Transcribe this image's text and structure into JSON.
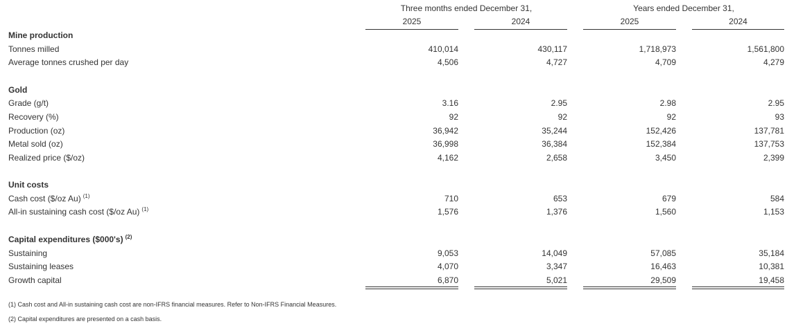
{
  "header": {
    "groups": [
      {
        "label": "Three months ended December 31,",
        "years": [
          "2025",
          "2024"
        ]
      },
      {
        "label": "Years ended December 31,",
        "years": [
          "2025",
          "2024"
        ]
      }
    ]
  },
  "sections": [
    {
      "title": "Mine production",
      "rows": [
        {
          "label": "Tonnes milled",
          "values": [
            "410,014",
            "430,117",
            "1,718,973",
            "1,561,800"
          ]
        },
        {
          "label": "Average tonnes crushed per day",
          "values": [
            "4,506",
            "4,727",
            "4,709",
            "4,279"
          ]
        }
      ]
    },
    {
      "title": "Gold",
      "rows": [
        {
          "label": "Grade (g/t)",
          "values": [
            "3.16",
            "2.95",
            "2.98",
            "2.95"
          ]
        },
        {
          "label": "Recovery (%)",
          "values": [
            "92",
            "92",
            "92",
            "93"
          ]
        },
        {
          "label": "Production (oz)",
          "values": [
            "36,942",
            "35,244",
            "152,426",
            "137,781"
          ]
        },
        {
          "label": "Metal sold (oz)",
          "values": [
            "36,998",
            "36,384",
            "152,384",
            "137,753"
          ]
        },
        {
          "label": "Realized price ($/oz)",
          "values": [
            "4,162",
            "2,658",
            "3,450",
            "2,399"
          ]
        }
      ]
    },
    {
      "title": "Unit costs",
      "rows": [
        {
          "label": "Cash cost ($/oz Au)",
          "note": "(1)",
          "values": [
            "710",
            "653",
            "679",
            "584"
          ]
        },
        {
          "label": "All-in sustaining cash cost ($/oz Au)",
          "note": "(1)",
          "values": [
            "1,576",
            "1,376",
            "1,560",
            "1,153"
          ]
        }
      ]
    },
    {
      "title": "Capital expenditures ($000's)",
      "note": "(2)",
      "rows": [
        {
          "label": "Sustaining",
          "values": [
            "9,053",
            "14,049",
            "57,085",
            "35,184"
          ]
        },
        {
          "label": "Sustaining leases",
          "values": [
            "4,070",
            "3,347",
            "16,463",
            "10,381"
          ]
        },
        {
          "label": "Growth capital",
          "values": [
            "6,870",
            "5,021",
            "29,509",
            "19,458"
          ]
        }
      ]
    }
  ],
  "footnotes": [
    "(1) Cash cost and All-in sustaining cash cost are non-IFRS financial measures. Refer to Non-IFRS Financial Measures.",
    "(2) Capital expenditures are presented on a cash basis."
  ]
}
